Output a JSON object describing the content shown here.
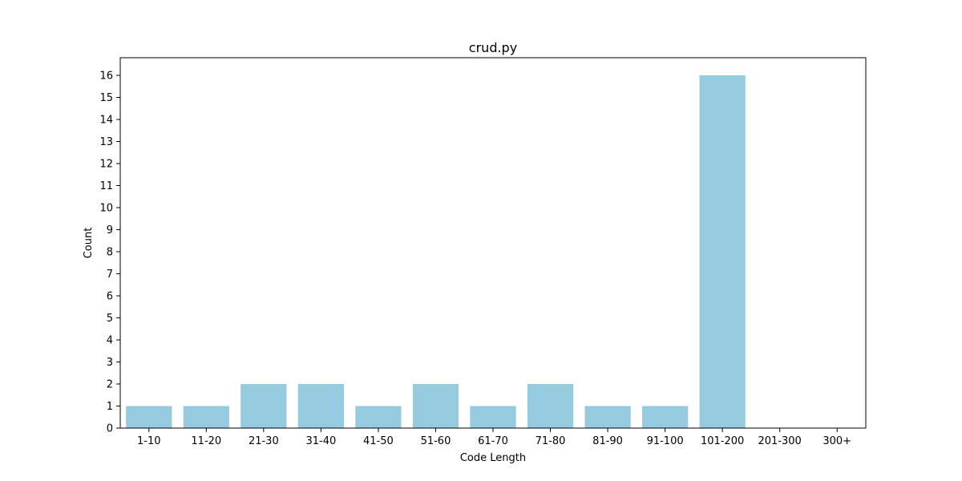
{
  "chart_data": {
    "type": "bar",
    "title": "crud.py",
    "xlabel": "Code Length",
    "ylabel": "Count",
    "categories": [
      "1-10",
      "11-20",
      "21-30",
      "31-40",
      "41-50",
      "51-60",
      "61-70",
      "71-80",
      "81-90",
      "91-100",
      "101-200",
      "201-300",
      "300+"
    ],
    "values": [
      1,
      1,
      2,
      2,
      1,
      2,
      1,
      2,
      1,
      1,
      16,
      0,
      0
    ],
    "ylim": [
      0,
      16.8
    ],
    "yticks": [
      0,
      1,
      2,
      3,
      4,
      5,
      6,
      7,
      8,
      9,
      10,
      11,
      12,
      13,
      14,
      15,
      16
    ],
    "grid": false,
    "colors": {
      "bar": "#96cadf",
      "axis": "#000000",
      "background": "#ffffff"
    }
  }
}
